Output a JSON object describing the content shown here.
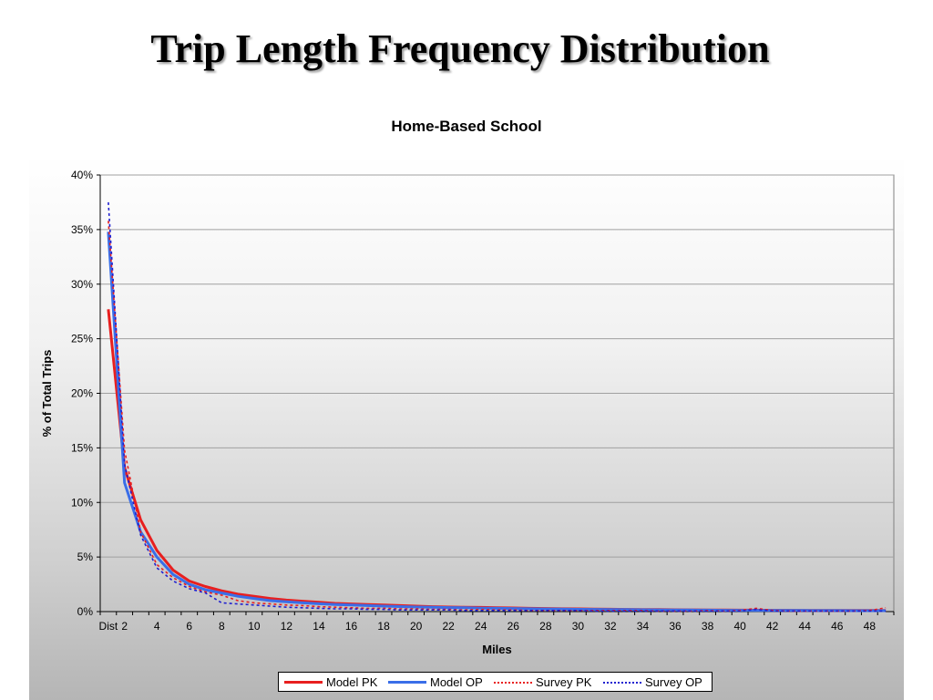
{
  "slide": {
    "title": "Trip Length Frequency Distribution"
  },
  "colors": {
    "model_pk": "#e81f1f",
    "model_op": "#3a6ee8",
    "survey_pk": "#e81f1f",
    "survey_op": "#1f1fd0",
    "grid": "#a0a0a0"
  },
  "chart_data": {
    "type": "line",
    "title": "Home-Based School",
    "xlabel": "Miles",
    "ylabel": "% of Total Trips",
    "ylim": [
      0,
      40
    ],
    "yticks": [
      0,
      5,
      10,
      15,
      20,
      25,
      30,
      35,
      40
    ],
    "ytick_labels": [
      "0%",
      "5%",
      "10%",
      "15%",
      "20%",
      "25%",
      "30%",
      "35%",
      "40%"
    ],
    "x": [
      1,
      2,
      3,
      4,
      5,
      6,
      7,
      8,
      9,
      10,
      11,
      12,
      13,
      14,
      15,
      16,
      17,
      18,
      19,
      20,
      21,
      22,
      23,
      24,
      25,
      26,
      27,
      28,
      29,
      30,
      31,
      32,
      33,
      34,
      35,
      36,
      37,
      38,
      39,
      40,
      41,
      42,
      43,
      44,
      45,
      46,
      47,
      48,
      49
    ],
    "xlim": [
      0.5,
      49.5
    ],
    "xtick_positions": [
      1,
      2,
      4,
      6,
      8,
      10,
      12,
      14,
      16,
      18,
      20,
      22,
      24,
      26,
      28,
      30,
      32,
      34,
      36,
      38,
      40,
      42,
      44,
      46,
      48
    ],
    "xtick_labels": [
      "Dist",
      "2",
      "4",
      "6",
      "8",
      "10",
      "12",
      "14",
      "16",
      "18",
      "20",
      "22",
      "24",
      "26",
      "28",
      "30",
      "32",
      "34",
      "36",
      "38",
      "40",
      "42",
      "44",
      "46",
      "48"
    ],
    "grid": true,
    "legend_position": "bottom",
    "series": [
      {
        "name": "Model PK",
        "style": "solid",
        "color_key": "model_pk",
        "values": [
          27.7,
          13.2,
          8.4,
          5.6,
          3.8,
          2.8,
          2.3,
          1.9,
          1.6,
          1.4,
          1.2,
          1.05,
          0.95,
          0.85,
          0.75,
          0.7,
          0.65,
          0.6,
          0.55,
          0.5,
          0.45,
          0.42,
          0.4,
          0.38,
          0.35,
          0.33,
          0.3,
          0.28,
          0.26,
          0.25,
          0.23,
          0.22,
          0.2,
          0.19,
          0.18,
          0.17,
          0.16,
          0.15,
          0.14,
          0.13,
          0.13,
          0.12,
          0.12,
          0.11,
          0.11,
          0.1,
          0.1,
          0.1,
          0.1
        ]
      },
      {
        "name": "Model OP",
        "style": "solid",
        "color_key": "model_op",
        "values": [
          34.8,
          11.8,
          7.3,
          5.0,
          3.4,
          2.5,
          2.0,
          1.7,
          1.4,
          1.2,
          1.0,
          0.9,
          0.8,
          0.72,
          0.65,
          0.6,
          0.55,
          0.5,
          0.46,
          0.42,
          0.4,
          0.37,
          0.35,
          0.32,
          0.3,
          0.28,
          0.26,
          0.24,
          0.23,
          0.21,
          0.2,
          0.19,
          0.18,
          0.17,
          0.16,
          0.15,
          0.14,
          0.13,
          0.12,
          0.12,
          0.11,
          0.11,
          0.1,
          0.1,
          0.09,
          0.09,
          0.08,
          0.08,
          0.08
        ]
      },
      {
        "name": "Survey PK",
        "style": "dotted",
        "color_key": "survey_pk",
        "values": [
          35.8,
          14.8,
          7.3,
          4.3,
          3.1,
          2.3,
          1.8,
          1.5,
          1.0,
          0.8,
          0.7,
          0.6,
          0.55,
          0.45,
          0.4,
          0.35,
          0.3,
          0.3,
          0.25,
          0.25,
          0.2,
          0.2,
          0.15,
          0.2,
          0.15,
          0.15,
          0.1,
          0.1,
          0.1,
          0.1,
          0.1,
          0.1,
          0.1,
          0.1,
          0.05,
          0.05,
          0.05,
          0.1,
          0.05,
          0.1,
          0.3,
          0.1,
          0.05,
          0.05,
          0.05,
          0.05,
          0.05,
          0.1,
          0.35
        ]
      },
      {
        "name": "Survey OP",
        "style": "dotted",
        "color_key": "survey_op",
        "values": [
          37.5,
          13.5,
          7.0,
          4.0,
          2.8,
          2.1,
          1.7,
          0.8,
          0.7,
          0.6,
          0.5,
          0.4,
          0.35,
          0.3,
          0.25,
          0.25,
          0.2,
          0.2,
          0.15,
          0.15,
          0.15,
          0.15,
          0.1,
          0.1,
          0.1,
          0.1,
          0.1,
          0.1,
          0.1,
          0.1,
          0.05,
          0.05,
          0.05,
          0.05,
          0.05,
          0.05,
          0.05,
          0.05,
          0.05,
          0.05,
          0.2,
          0.05,
          0.05,
          0.05,
          0.05,
          0.05,
          0.05,
          0.05,
          0.05
        ]
      }
    ]
  }
}
